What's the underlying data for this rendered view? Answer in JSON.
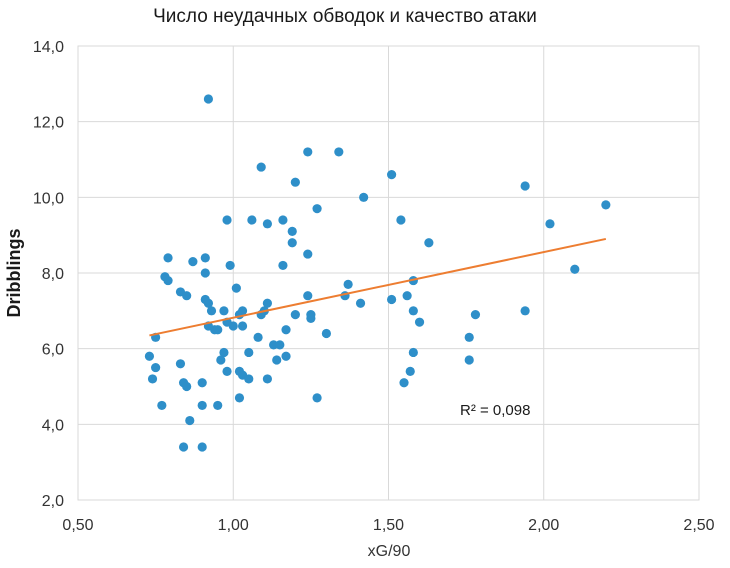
{
  "chart_data": {
    "type": "scatter",
    "title": "Число неудачных обводок и качество атаки",
    "xlabel": "xG/90",
    "ylabel": "Dribblings",
    "xlim": [
      0.5,
      2.5
    ],
    "ylim": [
      2.0,
      14.0
    ],
    "x_ticks": [
      0.5,
      1.0,
      1.5,
      2.0,
      2.5
    ],
    "x_tick_labels": [
      "0,50",
      "1,00",
      "1,50",
      "2,00",
      "2,50"
    ],
    "y_ticks": [
      2,
      4,
      6,
      8,
      10,
      12,
      14
    ],
    "y_tick_labels": [
      "2,0",
      "4,0",
      "6,0",
      "8,0",
      "10,0",
      "12,0",
      "14,0"
    ],
    "grid": "vertical and horizontal major gridlines",
    "point_color": "#2e8fc9",
    "trend_color": "#ed7d31",
    "trendline": {
      "type": "linear",
      "x": [
        0.73,
        2.2
      ],
      "y": [
        6.35,
        8.9
      ]
    },
    "annotation": "R² = 0,098",
    "points": [
      [
        0.92,
        12.6
      ],
      [
        1.09,
        10.8
      ],
      [
        1.24,
        11.2
      ],
      [
        1.34,
        11.2
      ],
      [
        1.2,
        10.4
      ],
      [
        1.27,
        9.7
      ],
      [
        1.42,
        10.0
      ],
      [
        1.51,
        10.6
      ],
      [
        1.54,
        9.4
      ],
      [
        1.94,
        10.3
      ],
      [
        2.02,
        9.3
      ],
      [
        2.2,
        9.8
      ],
      [
        1.63,
        8.8
      ],
      [
        2.1,
        8.1
      ],
      [
        0.98,
        9.4
      ],
      [
        1.06,
        9.4
      ],
      [
        1.11,
        9.3
      ],
      [
        1.16,
        9.4
      ],
      [
        1.19,
        9.1
      ],
      [
        1.19,
        8.8
      ],
      [
        1.24,
        8.5
      ],
      [
        0.79,
        8.4
      ],
      [
        0.87,
        8.3
      ],
      [
        0.91,
        8.4
      ],
      [
        0.91,
        8.0
      ],
      [
        0.99,
        8.2
      ],
      [
        1.16,
        8.2
      ],
      [
        0.78,
        7.9
      ],
      [
        0.79,
        7.8
      ],
      [
        0.83,
        7.5
      ],
      [
        0.85,
        7.4
      ],
      [
        0.91,
        7.3
      ],
      [
        0.92,
        7.2
      ],
      [
        0.93,
        7.0
      ],
      [
        1.01,
        7.6
      ],
      [
        0.97,
        7.0
      ],
      [
        1.03,
        7.0
      ],
      [
        1.11,
        7.2
      ],
      [
        1.1,
        7.0
      ],
      [
        1.09,
        6.9
      ],
      [
        1.24,
        7.4
      ],
      [
        1.2,
        6.9
      ],
      [
        1.25,
        6.9
      ],
      [
        1.37,
        7.7
      ],
      [
        1.36,
        7.4
      ],
      [
        1.41,
        7.2
      ],
      [
        1.51,
        7.3
      ],
      [
        1.56,
        7.4
      ],
      [
        1.58,
        7.8
      ],
      [
        1.58,
        7.0
      ],
      [
        1.6,
        6.7
      ],
      [
        1.78,
        6.9
      ],
      [
        1.94,
        7.0
      ],
      [
        0.92,
        6.6
      ],
      [
        0.94,
        6.5
      ],
      [
        0.95,
        6.5
      ],
      [
        0.98,
        6.7
      ],
      [
        1.0,
        6.6
      ],
      [
        1.02,
        6.9
      ],
      [
        1.03,
        6.6
      ],
      [
        1.17,
        6.5
      ],
      [
        1.25,
        6.8
      ],
      [
        1.3,
        6.4
      ],
      [
        1.08,
        6.3
      ],
      [
        0.75,
        6.3
      ],
      [
        1.13,
        6.1
      ],
      [
        1.15,
        6.1
      ],
      [
        1.05,
        5.9
      ],
      [
        0.97,
        5.9
      ],
      [
        0.96,
        5.7
      ],
      [
        1.14,
        5.7
      ],
      [
        1.17,
        5.8
      ],
      [
        1.58,
        5.9
      ],
      [
        1.76,
        6.3
      ],
      [
        1.76,
        5.7
      ],
      [
        0.73,
        5.8
      ],
      [
        0.75,
        5.5
      ],
      [
        0.74,
        5.2
      ],
      [
        0.83,
        5.6
      ],
      [
        0.84,
        5.1
      ],
      [
        0.85,
        5.0
      ],
      [
        0.9,
        5.1
      ],
      [
        0.98,
        5.4
      ],
      [
        1.02,
        5.4
      ],
      [
        1.03,
        5.3
      ],
      [
        1.05,
        5.2
      ],
      [
        1.11,
        5.2
      ],
      [
        1.57,
        5.4
      ],
      [
        1.55,
        5.1
      ],
      [
        0.77,
        4.5
      ],
      [
        0.9,
        4.5
      ],
      [
        0.95,
        4.5
      ],
      [
        1.02,
        4.7
      ],
      [
        1.27,
        4.7
      ],
      [
        0.86,
        4.1
      ],
      [
        0.84,
        3.4
      ],
      [
        0.9,
        3.4
      ]
    ]
  }
}
